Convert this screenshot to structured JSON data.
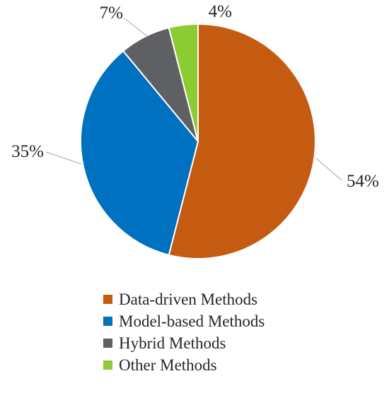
{
  "chart_data": {
    "type": "pie",
    "title": "",
    "start_angle_deg": 0,
    "direction": "clockwise",
    "slices": [
      {
        "name": "Data-driven Methods",
        "value": 54,
        "label": "54%",
        "color": "#C55A11"
      },
      {
        "name": "Model-based Methods",
        "value": 35,
        "label": "35%",
        "color": "#0070C0"
      },
      {
        "name": "Hybrid Methods",
        "value": 7,
        "label": "7%",
        "color": "#5E6064"
      },
      {
        "name": "Other Methods",
        "value": 4,
        "label": "4%",
        "color": "#8CCB32"
      }
    ],
    "legend_position": "bottom",
    "leader_lines": true
  }
}
